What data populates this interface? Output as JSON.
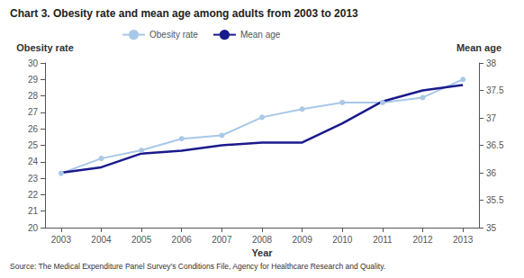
{
  "chart_data": {
    "type": "line",
    "title": "Chart 3. Obesity rate and mean age among adults from 2003 to 2013",
    "xlabel": "Year",
    "ylabel": "Obesity rate",
    "y2label": "Mean age",
    "source": "Source: The Medical Expenditure Panel Survey’s Conditions File, Agency for Healthcare Research and Quality.",
    "x": [
      2003,
      2004,
      2005,
      2006,
      2007,
      2008,
      2009,
      2010,
      2011,
      2012,
      2013
    ],
    "xlim": [
      2002.6,
      2013.4
    ],
    "xticks": [
      2003,
      2004,
      2005,
      2006,
      2007,
      2008,
      2009,
      2010,
      2011,
      2012,
      2013
    ],
    "ylim": [
      20,
      30
    ],
    "yticks": [
      20,
      21,
      22,
      23,
      24,
      25,
      26,
      27,
      28,
      29,
      30
    ],
    "y2lim": [
      35,
      38
    ],
    "y2ticks": [
      35,
      35.5,
      36,
      36.5,
      37,
      37.5,
      38
    ],
    "grid": false,
    "legend": "upper left",
    "series": [
      {
        "name": "Obesity rate",
        "color": "#a8c8e8",
        "marker": "circle",
        "values": [
          23.3,
          24.2,
          24.7,
          25.4,
          25.6,
          26.7,
          27.2,
          27.6,
          27.6,
          27.9,
          29.0
        ]
      },
      {
        "name": "Mean age",
        "color": "#1a1a8c",
        "marker": "none",
        "axis": "y2",
        "values": [
          36.0,
          36.1,
          36.35,
          36.4,
          36.5,
          36.55,
          36.55,
          36.9,
          37.3,
          37.5,
          37.6
        ]
      }
    ]
  }
}
